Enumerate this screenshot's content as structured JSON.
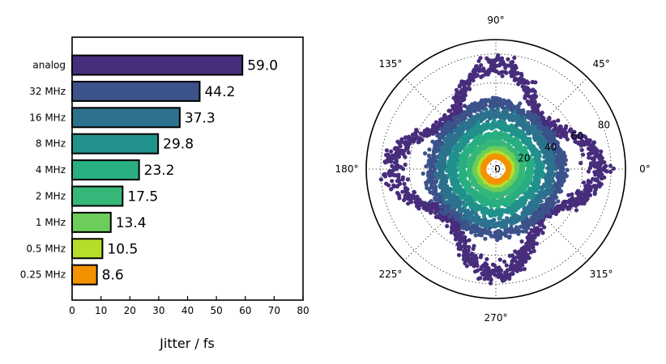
{
  "chart_data": [
    {
      "type": "bar",
      "orientation": "horizontal",
      "categories": [
        "analog",
        "32 MHz",
        "16 MHz",
        "8 MHz",
        "4 MHz",
        "2 MHz",
        "1 MHz",
        "0.5 MHz",
        "0.25 MHz"
      ],
      "values": [
        59.0,
        44.2,
        37.3,
        29.8,
        23.2,
        17.5,
        13.4,
        10.5,
        8.6
      ],
      "value_labels": [
        "59.0",
        "44.2",
        "37.3",
        "29.8",
        "23.2",
        "17.5",
        "13.4",
        "10.5",
        "8.6"
      ],
      "colors": [
        "#472d7b",
        "#3b528b",
        "#2c728e",
        "#21918c",
        "#28ae80",
        "#35b779",
        "#6ccd5a",
        "#b5de2b",
        "#f39200"
      ],
      "xlabel": "Jitter / fs",
      "xlim": [
        0,
        80
      ],
      "xticks": [
        0,
        10,
        20,
        30,
        40,
        50,
        60,
        70,
        80
      ],
      "grid": false
    },
    {
      "type": "scatter",
      "projection": "polar",
      "angle_labels": [
        "0°",
        "45°",
        "90°",
        "135°",
        "180°",
        "225°",
        "270°",
        "315°"
      ],
      "radial_ticks": [
        0,
        20,
        40,
        60,
        80
      ],
      "radial_tick_labels": [
        "0",
        "20",
        "40",
        "60",
        "80"
      ],
      "rlim": [
        0,
        90
      ],
      "series": [
        {
          "name": "analog",
          "radius": 59.0,
          "color": "#472d7b",
          "lobes": 4,
          "modulation": 0.22
        },
        {
          "name": "32 MHz",
          "radius": 44.2,
          "color": "#3b528b",
          "lobes": 4,
          "modulation": 0.03
        },
        {
          "name": "16 MHz",
          "radius": 37.3,
          "color": "#2c728e",
          "lobes": 4,
          "modulation": 0.02
        },
        {
          "name": "8 MHz",
          "radius": 29.8,
          "color": "#21918c",
          "lobes": 4,
          "modulation": 0.02
        },
        {
          "name": "4 MHz",
          "radius": 23.2,
          "color": "#28ae80",
          "lobes": 4,
          "modulation": 0.02
        },
        {
          "name": "2 MHz",
          "radius": 17.5,
          "color": "#35b779",
          "lobes": 4,
          "modulation": 0.02
        },
        {
          "name": "1 MHz",
          "radius": 13.4,
          "color": "#6ccd5a",
          "lobes": 4,
          "modulation": 0.02
        },
        {
          "name": "0.5 MHz",
          "radius": 10.5,
          "color": "#b5de2b",
          "lobes": 4,
          "modulation": 0.02
        },
        {
          "name": "0.25 MHz",
          "radius": 8.6,
          "color": "#f39200",
          "lobes": 4,
          "modulation": 0.02
        }
      ]
    }
  ]
}
